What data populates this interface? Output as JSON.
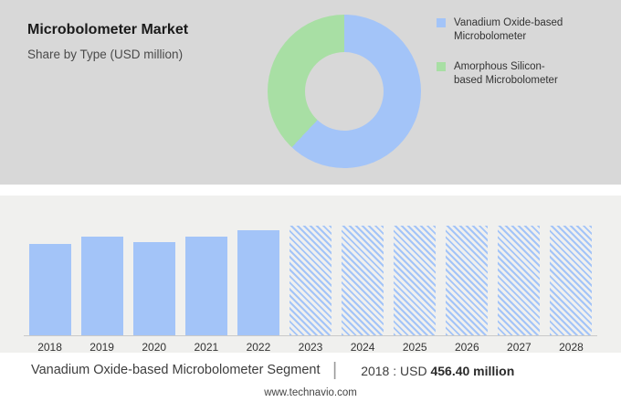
{
  "header": {
    "title": "Microbolometer Market",
    "subtitle": "Share by Type (USD million)"
  },
  "chart_data": [
    {
      "type": "pie",
      "donut": true,
      "labels": [
        "Vanadium Oxide-based Microbolometer",
        "Amorphous Silicon-based Microbolometer"
      ],
      "values": [
        62,
        38
      ],
      "colors": [
        "#a3c4f8",
        "#a8dfa4"
      ],
      "legend_position": "right",
      "hole_color": "#d8d8d8"
    },
    {
      "type": "bar",
      "categories": [
        "2018",
        "2019",
        "2020",
        "2021",
        "2022",
        "2023",
        "2024",
        "2025",
        "2026",
        "2027",
        "2028"
      ],
      "values": [
        456.4,
        492,
        461,
        492,
        524,
        null,
        null,
        null,
        null,
        null,
        null
      ],
      "forecast_categories": [
        "2023",
        "2024",
        "2025",
        "2026",
        "2027",
        "2028"
      ],
      "forecast_style": "hatched-full-height",
      "bar_color": "#a3c4f8",
      "ylim": [
        0,
        545
      ],
      "grid": false,
      "xlabel": "",
      "ylabel": ""
    }
  ],
  "caption": {
    "segment": "Vanadium Oxide-based Microbolometer Segment",
    "separator": "|",
    "prefix": "2018 : USD",
    "value": "456.40 million"
  },
  "footer": {
    "url": "www.technavio.com"
  }
}
